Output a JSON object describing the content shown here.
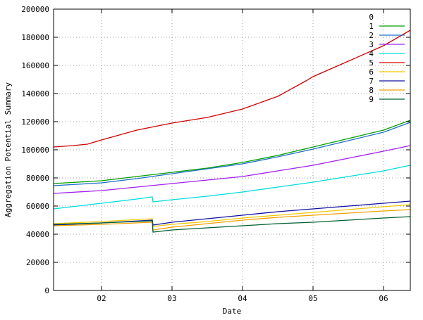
{
  "chart_data": {
    "type": "line",
    "title": "",
    "xlabel": "Date",
    "ylabel": "Aggregation Potential Summary",
    "x_ticks": [
      "02",
      "03",
      "04",
      "05",
      "06"
    ],
    "x_tick_values": [
      2,
      3,
      4,
      5,
      6
    ],
    "xlim": [
      1.32,
      6.38
    ],
    "y_ticks": [
      "0",
      "20000",
      "40000",
      "60000",
      "80000",
      "100000",
      "120000",
      "140000",
      "160000",
      "180000",
      "200000"
    ],
    "ylim": [
      0,
      200000
    ],
    "grid": true,
    "legend_position": "top-right",
    "series": [
      {
        "name": "0",
        "color": "#ffffff",
        "x": [],
        "y": []
      },
      {
        "name": "1",
        "color": "#00a000",
        "x": [
          1.32,
          2.0,
          2.5,
          3.0,
          3.5,
          4.0,
          4.5,
          5.0,
          5.5,
          6.0,
          6.38
        ],
        "y": [
          76000,
          78000,
          81000,
          84000,
          87000,
          91000,
          96000,
          102000,
          108000,
          114000,
          121000
        ]
      },
      {
        "name": "2",
        "color": "#1f6fc8",
        "x": [
          1.32,
          2.0,
          2.5,
          3.0,
          3.5,
          4.0,
          4.5,
          5.0,
          5.5,
          6.0,
          6.38
        ],
        "y": [
          74500,
          76500,
          79500,
          83000,
          86500,
          90000,
          95000,
          100500,
          106500,
          112500,
          119500
        ]
      },
      {
        "name": "3",
        "color": "#a020f0",
        "x": [
          1.32,
          2.0,
          2.5,
          3.0,
          3.5,
          4.0,
          4.5,
          5.0,
          5.5,
          6.0,
          6.38
        ],
        "y": [
          69000,
          71000,
          73500,
          76000,
          78500,
          81000,
          85000,
          89000,
          94000,
          99000,
          103000
        ]
      },
      {
        "name": "4",
        "color": "#00dcdc",
        "x": [
          1.32,
          2.0,
          2.5,
          2.72,
          2.73,
          3.0,
          3.5,
          4.0,
          4.5,
          5.0,
          5.5,
          6.0,
          6.38
        ],
        "y": [
          58000,
          62000,
          65000,
          66500,
          63000,
          64500,
          67000,
          70000,
          73500,
          77000,
          81000,
          85000,
          89000
        ]
      },
      {
        "name": "5",
        "color": "#d00000",
        "x": [
          1.32,
          1.6,
          1.8,
          2.0,
          2.5,
          3.0,
          3.5,
          4.0,
          4.5,
          4.9,
          5.0,
          5.5,
          6.0,
          6.38
        ],
        "y": [
          102000,
          103000,
          104000,
          107000,
          114000,
          119000,
          123000,
          129000,
          138000,
          149000,
          152000,
          163000,
          174000,
          185000
        ]
      },
      {
        "name": "6",
        "color": "#f0c800",
        "x": [
          1.32,
          2.0,
          2.72,
          2.73,
          3.0,
          3.5,
          4.0,
          4.5,
          5.0,
          5.5,
          6.0,
          6.38
        ],
        "y": [
          47500,
          49000,
          51000,
          45500,
          47000,
          49000,
          51500,
          53500,
          55500,
          57500,
          59500,
          61000
        ]
      },
      {
        "name": "7",
        "color": "#1010a0",
        "x": [
          1.32,
          2.0,
          2.72,
          2.73,
          3.0,
          3.5,
          4.0,
          4.5,
          5.0,
          5.5,
          6.0,
          6.38
        ],
        "y": [
          46500,
          48000,
          50000,
          46500,
          48500,
          51000,
          53500,
          56000,
          58000,
          60000,
          62000,
          63500
        ]
      },
      {
        "name": "8",
        "color": "#f0a000",
        "x": [
          1.32,
          2.0,
          2.72,
          2.73,
          3.0,
          3.5,
          4.0,
          4.5,
          5.0,
          5.5,
          6.0,
          6.38
        ],
        "y": [
          46000,
          47000,
          48500,
          43000,
          45000,
          47500,
          50000,
          52000,
          53500,
          55000,
          56500,
          57500
        ]
      },
      {
        "name": "9",
        "color": "#006030",
        "x": [
          1.32,
          2.0,
          2.72,
          2.73,
          3.0,
          3.5,
          4.0,
          4.5,
          5.0,
          5.5,
          6.0,
          6.38
        ],
        "y": [
          47000,
          48000,
          49500,
          41500,
          43000,
          44500,
          46000,
          47500,
          48500,
          50000,
          51500,
          52500
        ]
      }
    ]
  }
}
